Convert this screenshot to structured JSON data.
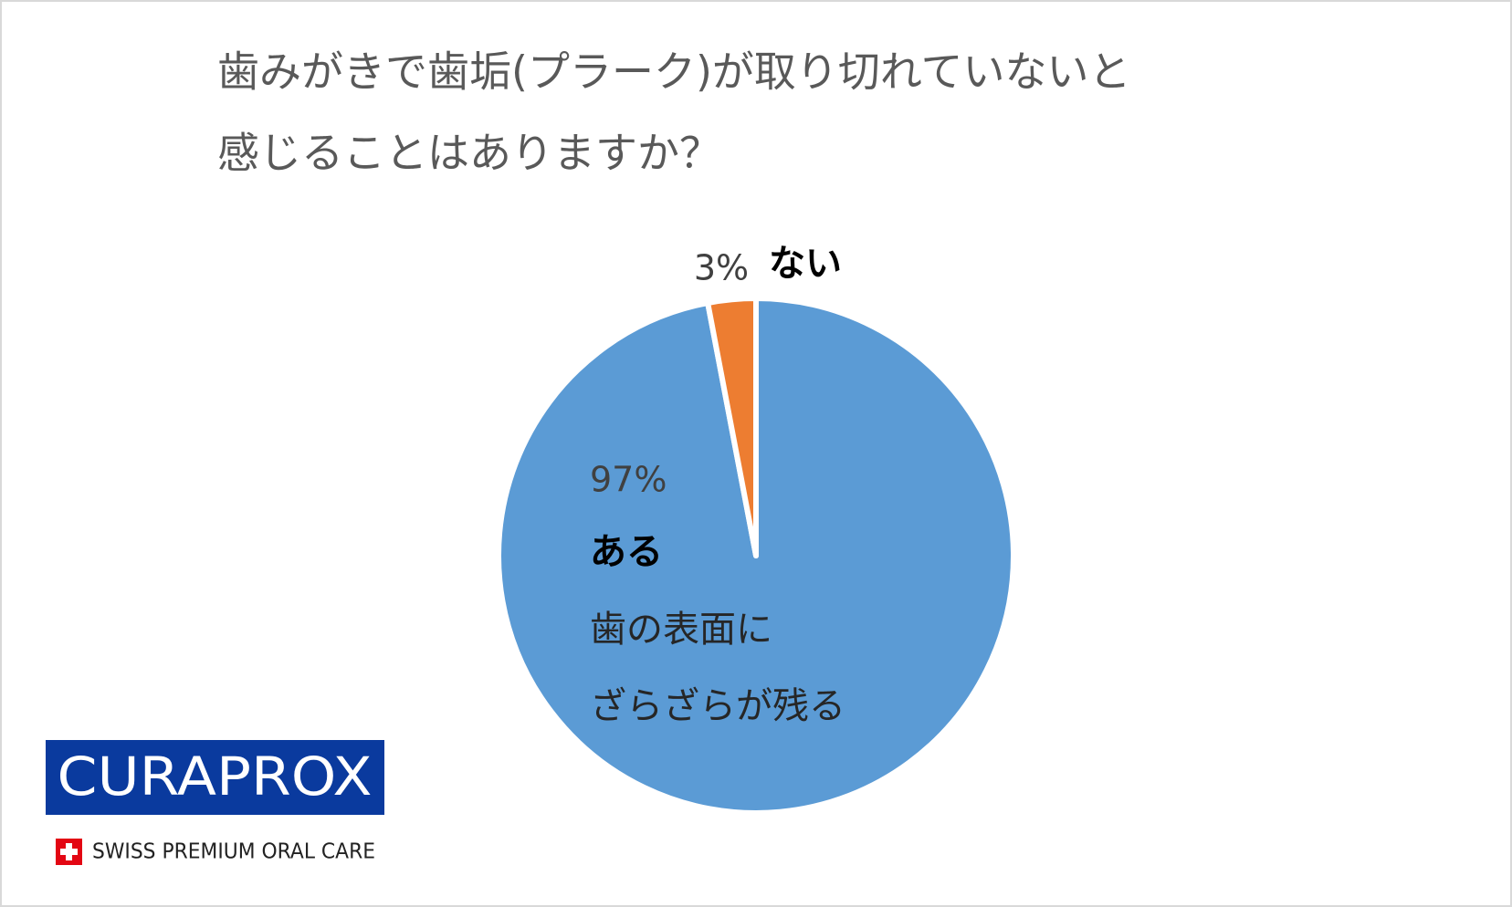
{
  "chart_data": {
    "type": "pie",
    "title": [
      "歯みがきで歯垢(プラーク)が取り切れていないと",
      "感じることはありますか？"
    ],
    "categories": [
      "ある",
      "ない"
    ],
    "values": [
      97,
      3
    ],
    "value_labels": [
      "97%",
      "3%"
    ],
    "colors": [
      "#5b9bd5",
      "#ed7d31"
    ],
    "annotation": [
      "歯の表面に",
      "ざらざらが残る"
    ]
  },
  "logo": {
    "name": "CURAPROX",
    "tagline": "SWISS PREMIUM ORAL CARE"
  }
}
